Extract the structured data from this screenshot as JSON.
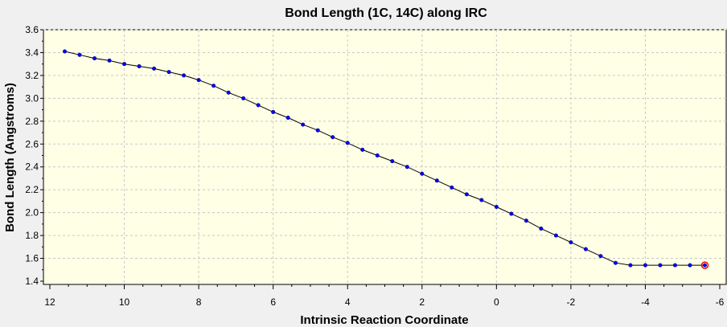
{
  "colors": {
    "background": "#f0f0f0",
    "plot_background": "#ffffe6",
    "line": "#000000",
    "marker_fill": "#0000ff",
    "marker_stroke": "#000080",
    "highlight": "#ff0000"
  },
  "chart_data": {
    "type": "line",
    "title": "Bond Length (1C, 14C) along IRC",
    "xlabel": "Intrinsic Reaction Coordinate",
    "ylabel": "Bond Length (Angstroms)",
    "xlim": [
      12,
      -6
    ],
    "ylim": [
      1.4,
      3.6
    ],
    "x_reversed": true,
    "grid": true,
    "xticks": [
      12,
      10,
      8,
      6,
      4,
      2,
      0,
      -2,
      -4,
      -6
    ],
    "xtick_labels": [
      "12",
      "10",
      "8",
      "6",
      "4",
      "2",
      "0",
      "-2",
      "-4",
      "-6"
    ],
    "yticks": [
      1.4,
      1.6,
      1.8,
      2.0,
      2.2,
      2.4,
      2.6,
      2.8,
      3.0,
      3.2,
      3.4,
      3.6
    ],
    "ytick_labels": [
      "1.4",
      "1.6",
      "1.8",
      "2.0",
      "2.2",
      "2.4",
      "2.6",
      "2.8",
      "3.0",
      "3.2",
      "3.4",
      "3.6"
    ],
    "series": [
      {
        "x": [
          11.6,
          11.2,
          10.8,
          10.4,
          10.0,
          9.6,
          9.2,
          8.8,
          8.4,
          8.0,
          7.6,
          7.2,
          6.8,
          6.4,
          6.0,
          5.6,
          5.2,
          4.8,
          4.4,
          4.0,
          3.6,
          3.2,
          2.8,
          2.4,
          2.0,
          1.6,
          1.2,
          0.8,
          0.4,
          0.0,
          -0.4,
          -0.8,
          -1.2,
          -1.6,
          -2.0,
          -2.4,
          -2.8,
          -3.2,
          -3.6,
          -4.0,
          -4.4,
          -4.8,
          -5.2,
          -5.6
        ],
        "y": [
          3.41,
          3.38,
          3.35,
          3.33,
          3.3,
          3.28,
          3.26,
          3.23,
          3.2,
          3.16,
          3.11,
          3.05,
          3.0,
          2.94,
          2.88,
          2.83,
          2.77,
          2.72,
          2.66,
          2.61,
          2.55,
          2.5,
          2.45,
          2.4,
          2.34,
          2.28,
          2.22,
          2.16,
          2.11,
          2.05,
          1.99,
          1.93,
          1.86,
          1.8,
          1.74,
          1.68,
          1.62,
          1.56,
          1.54,
          1.54,
          1.54,
          1.54,
          1.54,
          1.54
        ],
        "highlight_point": {
          "x": -5.6,
          "y": 1.54
        }
      }
    ]
  }
}
